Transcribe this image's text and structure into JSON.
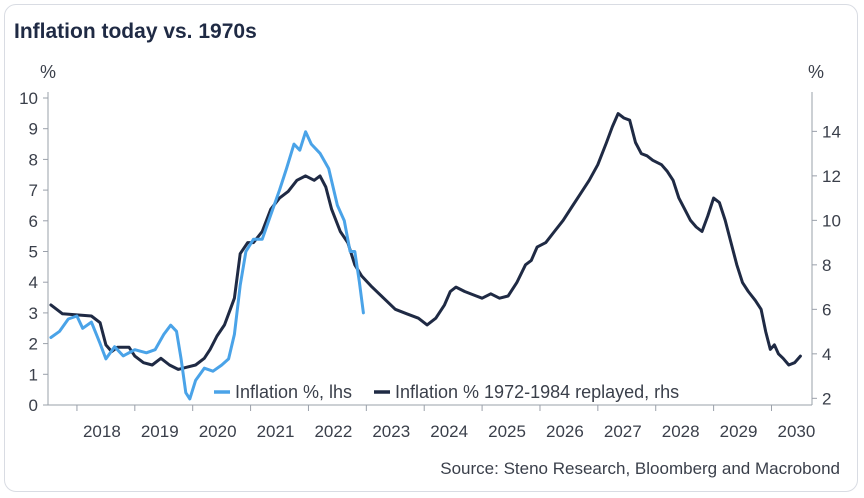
{
  "chart_data": {
    "type": "line",
    "title": "Inflation today vs. 1970s",
    "source": "Source: Steno Research, Bloomberg and Macrobond",
    "left_axis": {
      "unit": "%",
      "ylim": [
        0,
        10
      ],
      "ticks": [
        "0",
        "1",
        "2",
        "3",
        "4",
        "5",
        "6",
        "7",
        "8",
        "9",
        "10"
      ]
    },
    "right_axis": {
      "unit": "%",
      "ylim": [
        1.7,
        15.5
      ],
      "ticks": [
        "2",
        "4",
        "6",
        "8",
        "10",
        "12",
        "14"
      ],
      "tick_values": [
        2,
        4,
        6,
        8,
        10,
        12,
        14
      ]
    },
    "x_axis": {
      "xlim": [
        2017.5,
        2030.7
      ],
      "labels": [
        "2018",
        "2019",
        "2020",
        "2021",
        "2022",
        "2023",
        "2024",
        "2025",
        "2026",
        "2027",
        "2028",
        "2029",
        "2030"
      ],
      "label_positions": [
        2018,
        2019,
        2020,
        2021,
        2022,
        2023,
        2024,
        2025,
        2026,
        2027,
        2028,
        2029,
        2030
      ]
    },
    "legend_position": "bottom-center",
    "colors": {
      "series1": "#4aa3e8",
      "series2": "#1f2a44"
    },
    "series": [
      {
        "name": "Inflation %, lhs",
        "axis": "left",
        "points": [
          [
            2017.55,
            2.2
          ],
          [
            2017.7,
            2.4
          ],
          [
            2017.85,
            2.8
          ],
          [
            2018.0,
            2.9
          ],
          [
            2018.1,
            2.5
          ],
          [
            2018.25,
            2.7
          ],
          [
            2018.4,
            2.0
          ],
          [
            2018.5,
            1.5
          ],
          [
            2018.65,
            1.9
          ],
          [
            2018.8,
            1.6
          ],
          [
            2019.0,
            1.8
          ],
          [
            2019.2,
            1.7
          ],
          [
            2019.35,
            1.8
          ],
          [
            2019.5,
            2.3
          ],
          [
            2019.62,
            2.6
          ],
          [
            2019.72,
            2.4
          ],
          [
            2019.8,
            1.5
          ],
          [
            2019.88,
            0.4
          ],
          [
            2019.95,
            0.2
          ],
          [
            2020.05,
            0.8
          ],
          [
            2020.2,
            1.2
          ],
          [
            2020.35,
            1.1
          ],
          [
            2020.5,
            1.3
          ],
          [
            2020.62,
            1.5
          ],
          [
            2020.72,
            2.3
          ],
          [
            2020.82,
            3.9
          ],
          [
            2020.92,
            5.0
          ],
          [
            2021.05,
            5.4
          ],
          [
            2021.2,
            5.4
          ],
          [
            2021.35,
            6.2
          ],
          [
            2021.5,
            7.0
          ],
          [
            2021.62,
            7.7
          ],
          [
            2021.75,
            8.5
          ],
          [
            2021.85,
            8.3
          ],
          [
            2021.95,
            8.9
          ],
          [
            2022.05,
            8.5
          ],
          [
            2022.2,
            8.2
          ],
          [
            2022.35,
            7.7
          ],
          [
            2022.5,
            6.5
          ],
          [
            2022.62,
            6.0
          ],
          [
            2022.72,
            5.0
          ],
          [
            2022.8,
            5.0
          ],
          [
            2022.88,
            4.0
          ],
          [
            2022.95,
            3.0
          ]
        ]
      },
      {
        "name": "Inflation % 1972-1984 replayed, rhs",
        "axis": "right",
        "points": [
          [
            2017.55,
            6.2
          ],
          [
            2017.75,
            5.8
          ],
          [
            2018.0,
            5.75
          ],
          [
            2018.25,
            5.7
          ],
          [
            2018.4,
            5.4
          ],
          [
            2018.5,
            4.4
          ],
          [
            2018.6,
            4.1
          ],
          [
            2018.7,
            4.3
          ],
          [
            2018.9,
            4.3
          ],
          [
            2019.0,
            3.9
          ],
          [
            2019.15,
            3.6
          ],
          [
            2019.3,
            3.5
          ],
          [
            2019.45,
            3.8
          ],
          [
            2019.6,
            3.5
          ],
          [
            2019.75,
            3.3
          ],
          [
            2019.9,
            3.4
          ],
          [
            2020.05,
            3.5
          ],
          [
            2020.2,
            3.8
          ],
          [
            2020.3,
            4.2
          ],
          [
            2020.42,
            4.8
          ],
          [
            2020.55,
            5.3
          ],
          [
            2020.65,
            6.0
          ],
          [
            2020.72,
            6.5
          ],
          [
            2020.82,
            8.5
          ],
          [
            2020.95,
            9.0
          ],
          [
            2021.05,
            9.0
          ],
          [
            2021.2,
            9.5
          ],
          [
            2021.35,
            10.5
          ],
          [
            2021.5,
            11.0
          ],
          [
            2021.65,
            11.3
          ],
          [
            2021.8,
            11.8
          ],
          [
            2021.95,
            12.0
          ],
          [
            2022.1,
            11.8
          ],
          [
            2022.2,
            12.0
          ],
          [
            2022.3,
            11.5
          ],
          [
            2022.4,
            10.5
          ],
          [
            2022.55,
            9.5
          ],
          [
            2022.68,
            9.0
          ],
          [
            2022.8,
            8.0
          ],
          [
            2022.92,
            7.5
          ],
          [
            2023.1,
            7.0
          ],
          [
            2023.3,
            6.5
          ],
          [
            2023.5,
            6.0
          ],
          [
            2023.7,
            5.8
          ],
          [
            2023.9,
            5.6
          ],
          [
            2024.05,
            5.3
          ],
          [
            2024.2,
            5.6
          ],
          [
            2024.35,
            6.2
          ],
          [
            2024.45,
            6.8
          ],
          [
            2024.55,
            7.0
          ],
          [
            2024.7,
            6.8
          ],
          [
            2024.9,
            6.6
          ],
          [
            2025.0,
            6.5
          ],
          [
            2025.15,
            6.7
          ],
          [
            2025.3,
            6.5
          ],
          [
            2025.45,
            6.6
          ],
          [
            2025.6,
            7.2
          ],
          [
            2025.75,
            8.0
          ],
          [
            2025.85,
            8.2
          ],
          [
            2025.95,
            8.8
          ],
          [
            2026.1,
            9.0
          ],
          [
            2026.25,
            9.5
          ],
          [
            2026.4,
            10.0
          ],
          [
            2026.55,
            10.6
          ],
          [
            2026.7,
            11.2
          ],
          [
            2026.85,
            11.8
          ],
          [
            2027.0,
            12.5
          ],
          [
            2027.15,
            13.5
          ],
          [
            2027.25,
            14.2
          ],
          [
            2027.35,
            14.8
          ],
          [
            2027.45,
            14.6
          ],
          [
            2027.55,
            14.5
          ],
          [
            2027.65,
            13.5
          ],
          [
            2027.75,
            13.0
          ],
          [
            2027.85,
            12.9
          ],
          [
            2027.95,
            12.7
          ],
          [
            2028.1,
            12.5
          ],
          [
            2028.2,
            12.2
          ],
          [
            2028.3,
            11.8
          ],
          [
            2028.4,
            11.0
          ],
          [
            2028.5,
            10.5
          ],
          [
            2028.6,
            10.0
          ],
          [
            2028.7,
            9.7
          ],
          [
            2028.8,
            9.5
          ],
          [
            2028.9,
            10.2
          ],
          [
            2029.0,
            11.0
          ],
          [
            2029.1,
            10.8
          ],
          [
            2029.2,
            10.0
          ],
          [
            2029.3,
            9.0
          ],
          [
            2029.4,
            8.0
          ],
          [
            2029.5,
            7.2
          ],
          [
            2029.6,
            6.8
          ],
          [
            2029.72,
            6.4
          ],
          [
            2029.82,
            6.0
          ],
          [
            2029.9,
            5.0
          ],
          [
            2029.98,
            4.2
          ],
          [
            2030.05,
            4.4
          ],
          [
            2030.12,
            4.0
          ],
          [
            2030.2,
            3.8
          ],
          [
            2030.3,
            3.5
          ],
          [
            2030.4,
            3.6
          ],
          [
            2030.5,
            3.9
          ]
        ]
      }
    ]
  }
}
